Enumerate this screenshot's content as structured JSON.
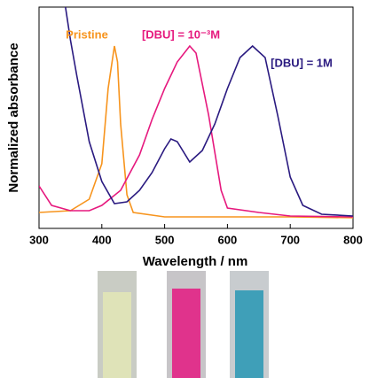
{
  "chart_data": {
    "type": "line",
    "xlabel": "Wavelength / nm",
    "ylabel": "Normalized absorbance",
    "xlim": [
      300,
      800
    ],
    "xticks": [
      300,
      400,
      500,
      600,
      700,
      800
    ],
    "ylim": [
      -0.05,
      1.2
    ],
    "series": [
      {
        "name": "Pristine",
        "color": "#f7941d",
        "x": [
          300,
          350,
          380,
          400,
          410,
          420,
          425,
          430,
          440,
          450,
          500,
          600,
          700,
          800
        ],
        "values": [
          0.04,
          0.05,
          0.115,
          0.315,
          0.74,
          0.98,
          0.89,
          0.54,
          0.14,
          0.04,
          0.015,
          0.015,
          0.015,
          0.01
        ]
      },
      {
        "name": "[DBU] = 10⁻³M",
        "color": "#e6197e",
        "x": [
          300,
          320,
          350,
          380,
          400,
          430,
          460,
          480,
          500,
          520,
          540,
          550,
          570,
          590,
          600,
          650,
          700,
          800
        ],
        "values": [
          0.19,
          0.08,
          0.05,
          0.05,
          0.08,
          0.165,
          0.365,
          0.565,
          0.74,
          0.89,
          0.98,
          0.94,
          0.59,
          0.165,
          0.065,
          0.04,
          0.02,
          0.015
        ]
      },
      {
        "name": "[DBU] = 1M",
        "color": "#2a1a80",
        "x": [
          340,
          350,
          360,
          380,
          400,
          420,
          440,
          460,
          480,
          500,
          510,
          520,
          540,
          560,
          580,
          600,
          620,
          640,
          660,
          680,
          700,
          720,
          750,
          800
        ],
        "values": [
          1.25,
          1.015,
          0.815,
          0.44,
          0.215,
          0.09,
          0.1,
          0.165,
          0.265,
          0.4,
          0.455,
          0.44,
          0.325,
          0.39,
          0.54,
          0.74,
          0.915,
          0.98,
          0.915,
          0.59,
          0.24,
          0.08,
          0.03,
          0.02
        ]
      }
    ]
  }
}
